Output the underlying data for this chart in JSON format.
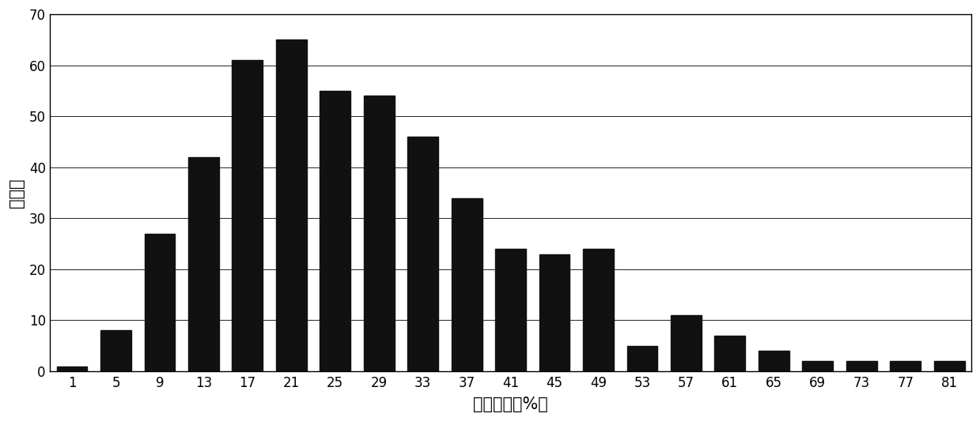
{
  "categories": [
    "1",
    "5",
    "9",
    "13",
    "17",
    "21",
    "25",
    "29",
    "33",
    "37",
    "41",
    "45",
    "49",
    "53",
    "57",
    "61",
    "65",
    "69",
    "73",
    "77",
    "81"
  ],
  "values": [
    1,
    8,
    27,
    42,
    61,
    65,
    55,
    54,
    46,
    34,
    24,
    23,
    24,
    5,
    11,
    7,
    4,
    2,
    2,
    2,
    2
  ],
  "bar_color": "#111111",
  "xlabel": "病情指数（%）",
  "ylabel": "株系数",
  "ylim": [
    0,
    70
  ],
  "yticks": [
    0,
    10,
    20,
    30,
    40,
    50,
    60,
    70
  ],
  "background_color": "#ffffff",
  "xlabel_fontsize": 15,
  "ylabel_fontsize": 15,
  "tick_fontsize": 12,
  "bar_width": 0.7
}
